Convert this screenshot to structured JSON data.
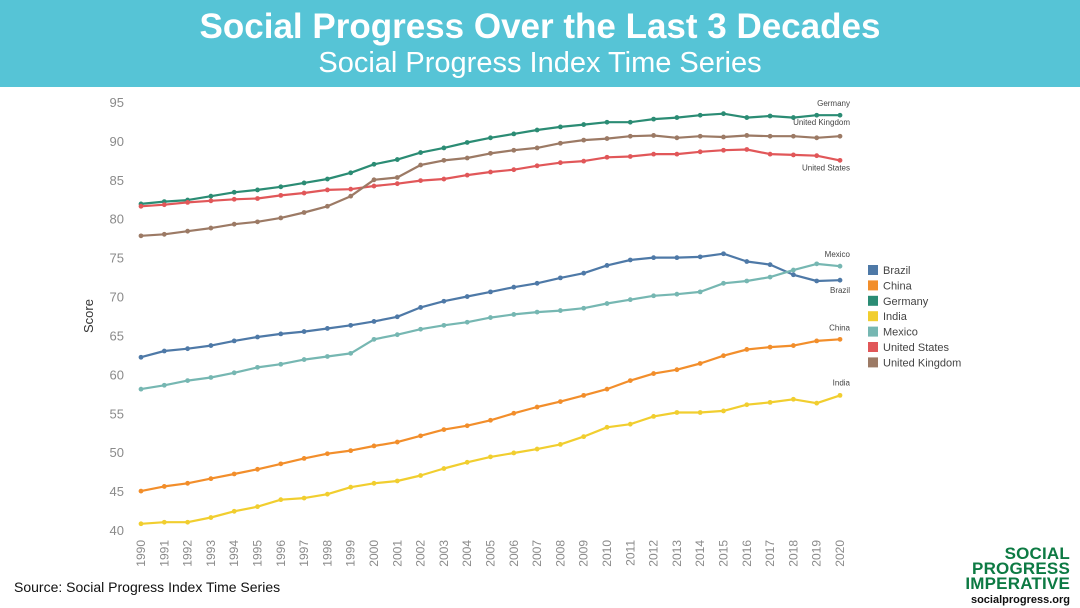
{
  "header": {
    "title": "Social Progress Over the Last 3 Decades",
    "subtitle": "Social Progress Index Time Series"
  },
  "source": "Source: Social Progress Index Time Series",
  "logo": {
    "line1": "SOCIAL",
    "line2": "PROGRESS",
    "line3": "IMPERATIVE",
    "url": "socialprogress.org"
  },
  "chart_data": {
    "type": "line",
    "title": "",
    "xlabel": "",
    "ylabel": "Score",
    "ylim": [
      40,
      95
    ],
    "yticks": [
      40,
      45,
      50,
      55,
      60,
      65,
      70,
      75,
      80,
      85,
      90,
      95
    ],
    "x": [
      1990,
      1991,
      1992,
      1993,
      1994,
      1995,
      1996,
      1997,
      1998,
      1999,
      2000,
      2001,
      2002,
      2003,
      2004,
      2005,
      2006,
      2007,
      2008,
      2009,
      2010,
      2011,
      2012,
      2013,
      2014,
      2015,
      2016,
      2017,
      2018,
      2019,
      2020
    ],
    "grid": false,
    "legend": "right",
    "series": [
      {
        "name": "Brazil",
        "color": "#4e79a7",
        "end_label": "Brazil",
        "values": [
          62.2,
          63.0,
          63.3,
          63.7,
          64.3,
          64.8,
          65.2,
          65.5,
          65.9,
          66.3,
          66.8,
          67.4,
          68.6,
          69.4,
          70.0,
          70.6,
          71.2,
          71.7,
          72.4,
          73.0,
          74.0,
          74.7,
          75.0,
          75.0,
          75.1,
          75.5,
          74.5,
          74.1,
          72.8,
          72.0,
          72.1
        ]
      },
      {
        "name": "China",
        "color": "#f28e2b",
        "end_label": "China",
        "values": [
          45.0,
          45.6,
          46.0,
          46.6,
          47.2,
          47.8,
          48.5,
          49.2,
          49.8,
          50.2,
          50.8,
          51.3,
          52.1,
          52.9,
          53.4,
          54.1,
          55.0,
          55.8,
          56.5,
          57.3,
          58.1,
          59.2,
          60.1,
          60.6,
          61.4,
          62.4,
          63.2,
          63.5,
          63.7,
          64.3,
          64.5
        ]
      },
      {
        "name": "Germany",
        "color": "#2b8c74",
        "end_label": "Germany",
        "values": [
          81.9,
          82.2,
          82.4,
          82.9,
          83.4,
          83.7,
          84.1,
          84.6,
          85.1,
          85.9,
          87.0,
          87.6,
          88.5,
          89.1,
          89.8,
          90.4,
          90.9,
          91.4,
          91.8,
          92.1,
          92.4,
          92.4,
          92.8,
          93.0,
          93.3,
          93.5,
          93.0,
          93.2,
          93.0,
          93.3,
          93.3
        ]
      },
      {
        "name": "India",
        "color": "#f1ce2f",
        "end_label": "India",
        "values": [
          40.8,
          41.0,
          41.0,
          41.6,
          42.4,
          43.0,
          43.9,
          44.1,
          44.6,
          45.5,
          46.0,
          46.3,
          47.0,
          47.9,
          48.7,
          49.4,
          49.9,
          50.4,
          51.0,
          52.0,
          53.2,
          53.6,
          54.6,
          55.1,
          55.1,
          55.3,
          56.1,
          56.4,
          56.8,
          56.3,
          57.3
        ]
      },
      {
        "name": "Mexico",
        "color": "#76b7b2",
        "end_label": "Mexico",
        "values": [
          58.1,
          58.6,
          59.2,
          59.6,
          60.2,
          60.9,
          61.3,
          61.9,
          62.3,
          62.7,
          64.5,
          65.1,
          65.8,
          66.3,
          66.7,
          67.3,
          67.7,
          68.0,
          68.2,
          68.5,
          69.1,
          69.6,
          70.1,
          70.3,
          70.6,
          71.7,
          72.0,
          72.5,
          73.4,
          74.2,
          73.9
        ]
      },
      {
        "name": "United States",
        "color": "#e15759",
        "end_label": "United States",
        "values": [
          81.6,
          81.8,
          82.1,
          82.3,
          82.5,
          82.6,
          83.0,
          83.3,
          83.7,
          83.8,
          84.2,
          84.5,
          84.9,
          85.1,
          85.6,
          86.0,
          86.3,
          86.8,
          87.2,
          87.4,
          87.9,
          88.0,
          88.3,
          88.3,
          88.6,
          88.8,
          88.9,
          88.3,
          88.2,
          88.1,
          87.5
        ]
      },
      {
        "name": "United Kingdom",
        "color": "#9c7a65",
        "end_label": "United Kingdom",
        "values": [
          77.8,
          78.0,
          78.4,
          78.8,
          79.3,
          79.6,
          80.1,
          80.8,
          81.6,
          82.9,
          85.0,
          85.3,
          86.9,
          87.5,
          87.8,
          88.4,
          88.8,
          89.1,
          89.7,
          90.1,
          90.3,
          90.6,
          90.7,
          90.4,
          90.6,
          90.5,
          90.7,
          90.6,
          90.6,
          90.4,
          90.6
        ]
      }
    ]
  }
}
